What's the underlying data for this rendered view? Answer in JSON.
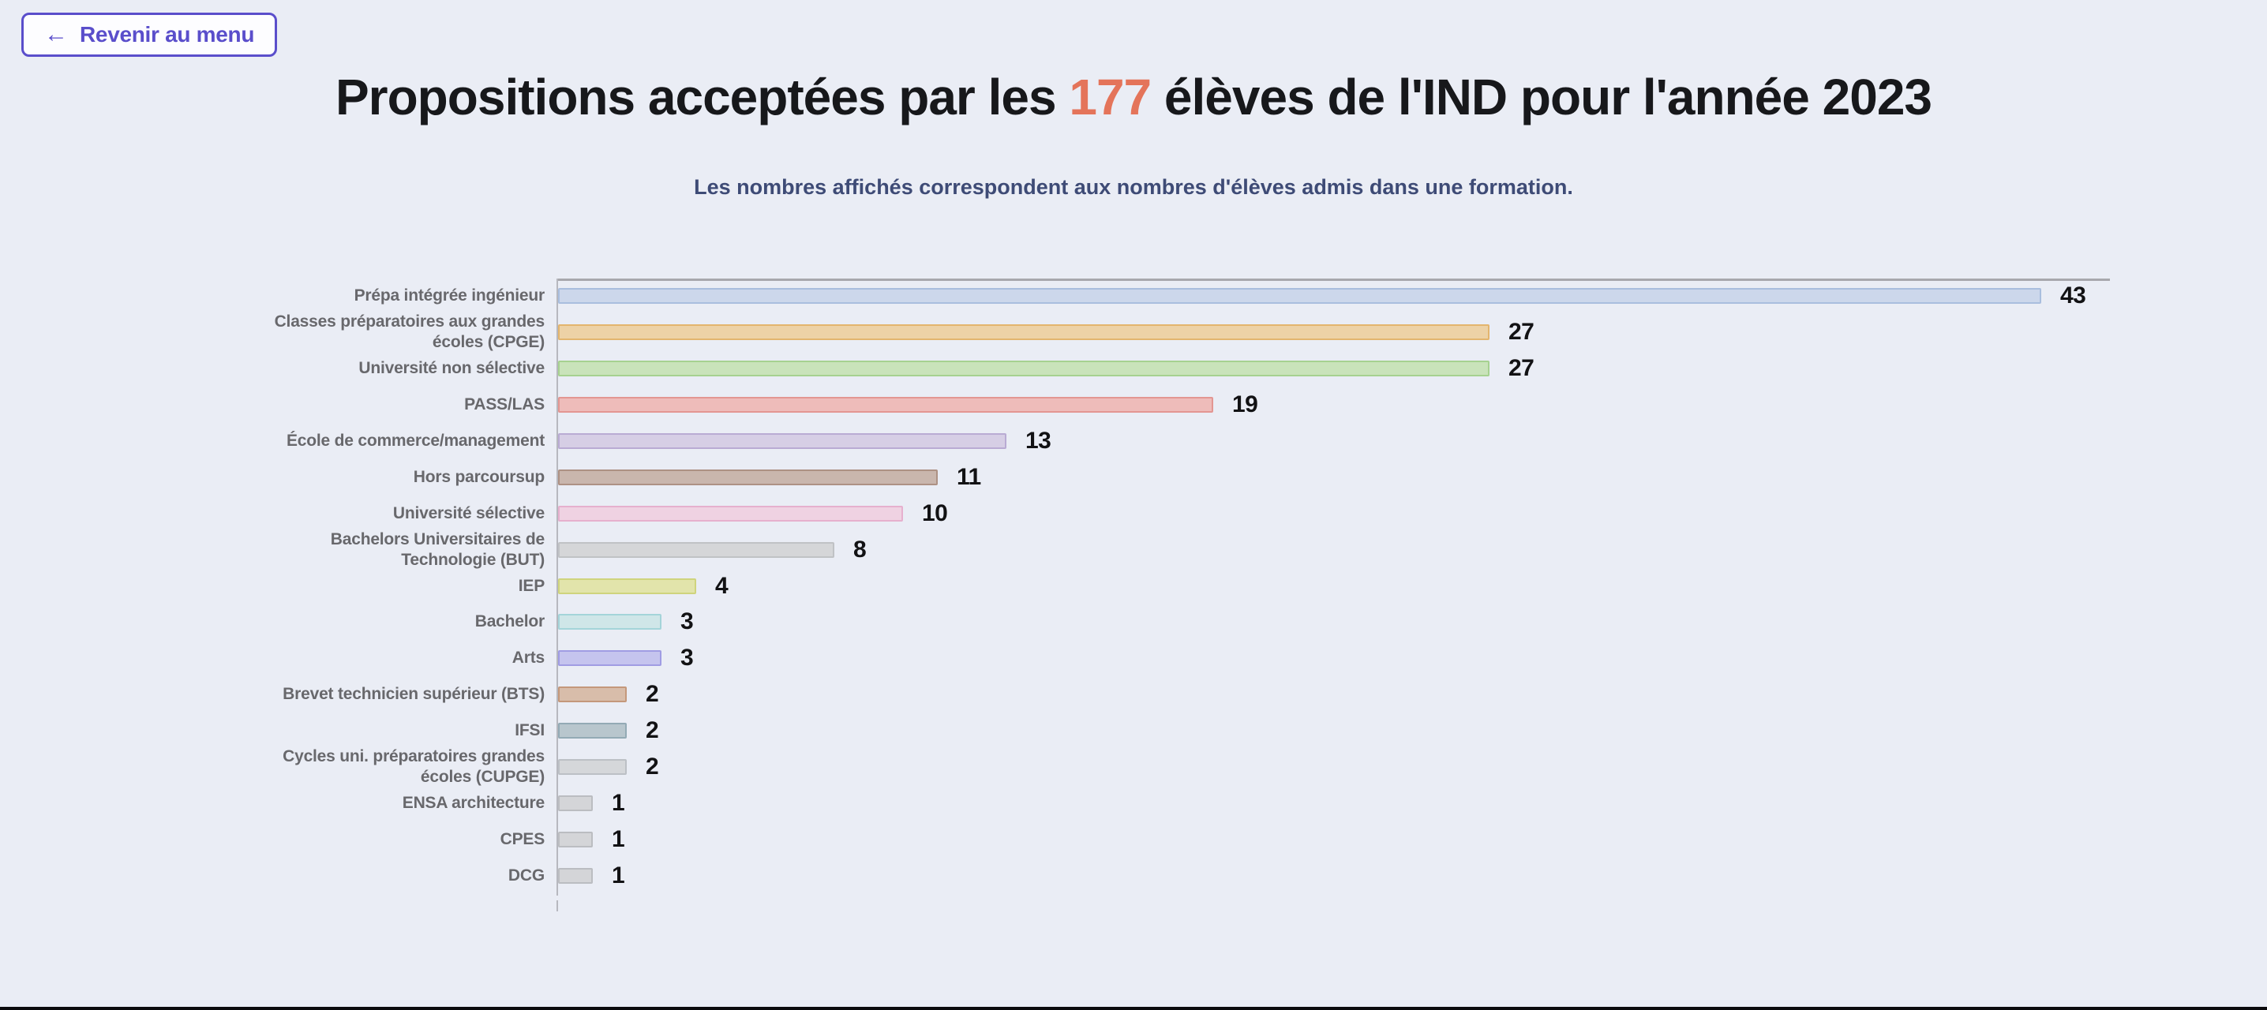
{
  "page": {
    "background": "#eaedf5"
  },
  "toolbar": {
    "back_icon": "←",
    "back_label": "Revenir au menu"
  },
  "header": {
    "title_prefix": "Propositions acceptées par les ",
    "title_accent": "177",
    "title_suffix": " élèves de l'IND pour l'année 2023",
    "subtitle": "Les nombres affichés correspondent aux nombres d'élèves admis dans une formation.",
    "accent_color": "#e4745a"
  },
  "chart_data": {
    "type": "bar",
    "orientation": "horizontal",
    "title": "Propositions acceptées par les 177 élèves de l'IND pour l'année 2023",
    "subtitle": "Les nombres affichés correspondent aux nombres d'élèves admis dans une formation.",
    "total_students": 177,
    "year": "2023",
    "categories": [
      "Prépa intégrée ingénieur",
      "Classes préparatoires aux grandes écoles (CPGE)",
      "Université non sélective",
      "PASS/LAS",
      "École de commerce/management",
      "Hors parcoursup",
      "Université sélective",
      "Bachelors Universitaires de Technologie (BUT)",
      "IEP",
      "Bachelor",
      "Arts",
      "Brevet technicien supérieur (BTS)",
      "IFSI",
      "Cycles uni. préparatoires grandes écoles (CUPGE)",
      "ENSA architecture",
      "CPES",
      "DCG"
    ],
    "values": [
      43,
      27,
      27,
      19,
      13,
      11,
      10,
      8,
      4,
      3,
      3,
      2,
      2,
      2,
      1,
      1,
      1
    ],
    "bar_fill_colors": [
      "#ccd7eb",
      "#edd2a6",
      "#c9e3ba",
      "#eebcba",
      "#d6cee5",
      "#c9b6ad",
      "#efd2e2",
      "#d5d6d8",
      "#e2e4ab",
      "#cfe6e8",
      "#c5c4ee",
      "#d8bdaa",
      "#b8c6cd",
      "#d5d7da",
      "#d4d5d8",
      "#d4d5d8",
      "#d4d5d8"
    ],
    "bar_border_colors": [
      "#a9bede",
      "#e3b56e",
      "#a6d190",
      "#e39692",
      "#b9abd3",
      "#ad9184",
      "#e6b0ce",
      "#c0c2c5",
      "#cfd47d",
      "#a4d4d9",
      "#a09ce3",
      "#c4987b",
      "#93aab5",
      "#bcc0c5",
      "#bbbdc1",
      "#bbbdc1",
      "#bbbdc1"
    ],
    "xlim": [
      0,
      45
    ],
    "grid": false,
    "legend": false,
    "value_label_position": "end",
    "value_label_color": "#121214",
    "category_label_color": "#68686c",
    "axis_color": "#a8a8ad"
  }
}
